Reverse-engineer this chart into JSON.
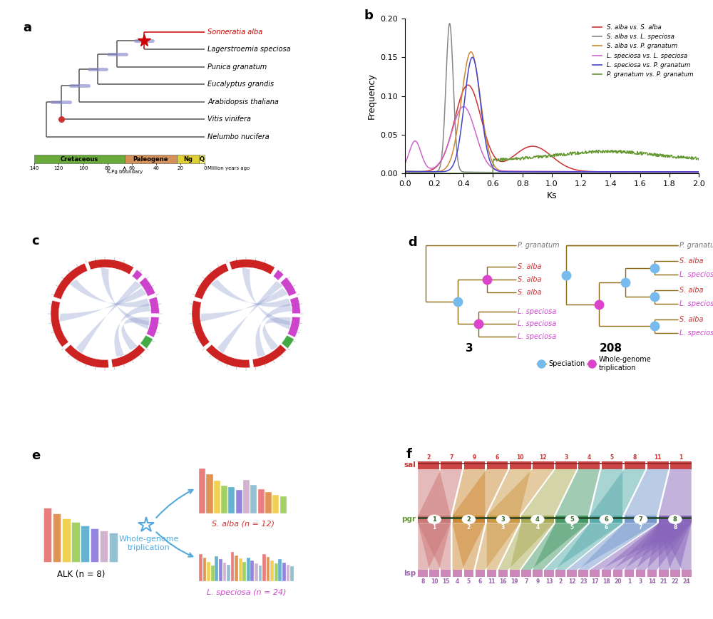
{
  "panel_a": {
    "tree_color": "#555555",
    "highlight_color": "#cc0000",
    "era_labels": [
      "Cretaceous",
      "Paleogene",
      "Ng",
      "Q"
    ],
    "era_colors": [
      "#6aaa3a",
      "#d4915a",
      "#e0d033",
      "#f0ee80"
    ],
    "era_boundaries_mya": [
      140,
      66,
      23,
      5,
      0
    ]
  },
  "panel_b": {
    "xlabel": "Ks",
    "ylabel": "Frequency",
    "ylim": [
      0,
      0.2
    ],
    "xlim": [
      0.0,
      2.0
    ],
    "legend_entries": [
      "S. alba vs. S. alba",
      "S. alba vs. L. speciosa",
      "S. alba vs. P. granatum",
      "L. speciosa vs. L. speciosa",
      "L. speciosa vs. P. granatum",
      "P. granatum vs. P. granatum"
    ],
    "line_colors": [
      "#cc3333",
      "#888888",
      "#cc8833",
      "#cc66cc",
      "#4444cc",
      "#669933"
    ],
    "yticks": [
      0.0,
      0.05,
      0.1,
      0.15,
      0.2
    ],
    "xticks": [
      0.0,
      0.2,
      0.4,
      0.6,
      0.8,
      1.0,
      1.2,
      1.4,
      1.6,
      1.8,
      2.0
    ]
  },
  "panel_f": {
    "sal_nums": [
      "2",
      "7",
      "9",
      "6",
      "10",
      "12",
      "3",
      "4",
      "5",
      "8",
      "11",
      "1"
    ],
    "pgr_nums": [
      "1",
      "2",
      "3",
      "4",
      "5",
      "6",
      "7",
      "8"
    ],
    "lsp_nums": [
      "8",
      "10",
      "15",
      "4",
      "5",
      "6",
      "11",
      "16",
      "19",
      "7",
      "9",
      "13",
      "2",
      "12",
      "23",
      "17",
      "18",
      "20",
      "1",
      "3",
      "14",
      "21",
      "22",
      "24"
    ],
    "pgr_colors": [
      "#cc7777",
      "#cc8833",
      "#cc9944",
      "#aaaa55",
      "#449966",
      "#55aaaa",
      "#7799cc",
      "#8866bb"
    ],
    "sal_label_color": "#cc3333",
    "pgr_label_color": "#669933",
    "lsp_label_color": "#9966aa"
  },
  "background_color": "#ffffff"
}
